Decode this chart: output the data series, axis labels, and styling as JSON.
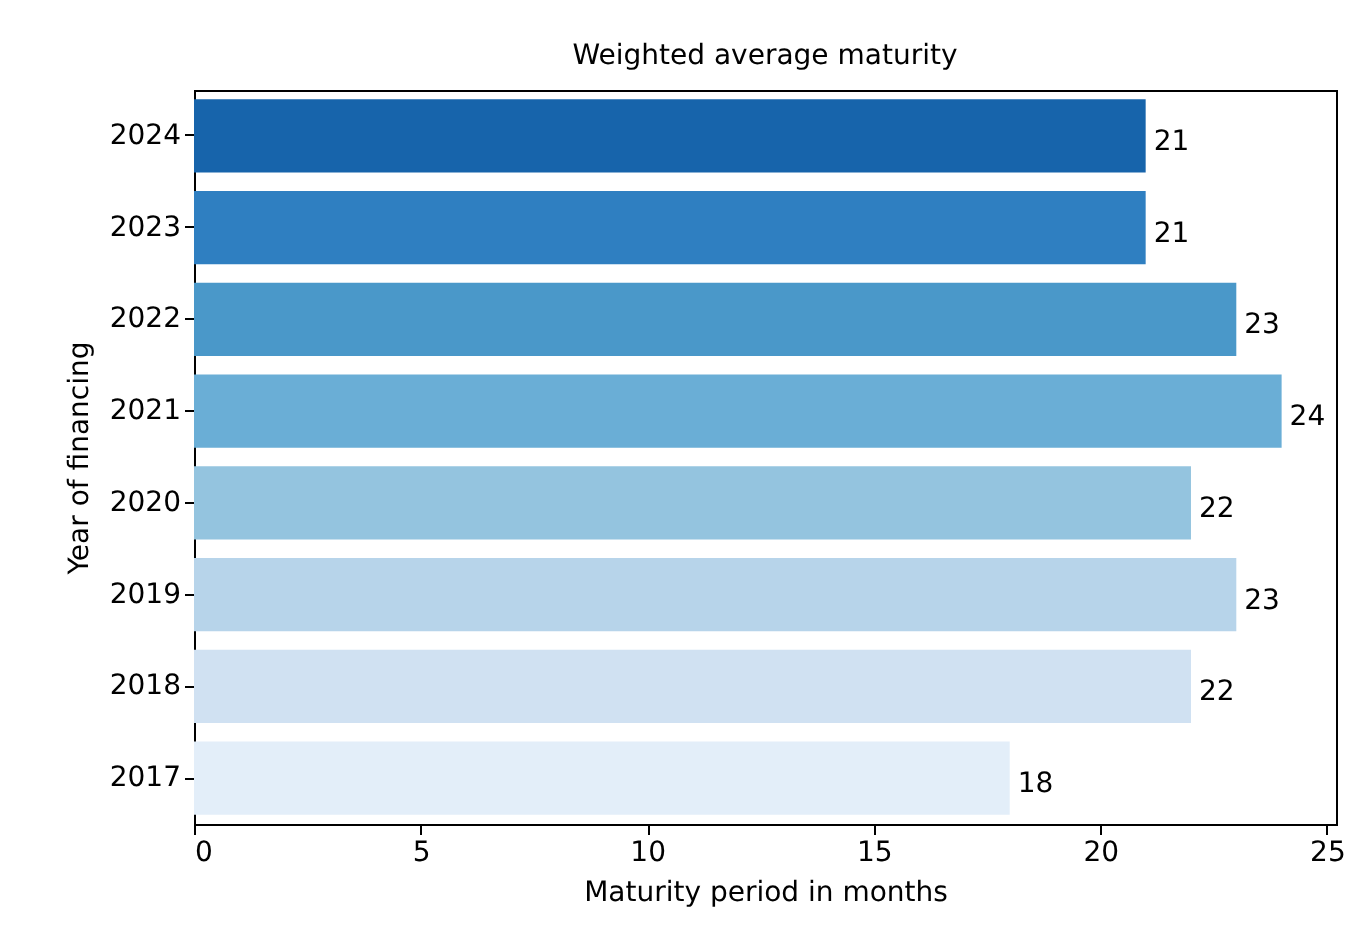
{
  "chart_data": {
    "type": "bar",
    "orientation": "horizontal",
    "title": "Weighted average maturity",
    "xlabel": "Maturity period in months",
    "ylabel": "Year of financing",
    "categories": [
      "2024",
      "2023",
      "2022",
      "2021",
      "2020",
      "2019",
      "2018",
      "2017"
    ],
    "values": [
      21,
      21,
      23,
      24,
      22,
      23,
      22,
      18
    ],
    "colors": [
      "#1764ab",
      "#2f7fc1",
      "#4a98c9",
      "#6aaed6",
      "#94c4df",
      "#b7d4ea",
      "#d0e1f2",
      "#e3eef9"
    ],
    "xlim": [
      0,
      25.2
    ],
    "xticks": [
      0,
      5,
      10,
      15,
      20,
      25
    ],
    "data_labels": true,
    "grid": false,
    "legend": false
  }
}
